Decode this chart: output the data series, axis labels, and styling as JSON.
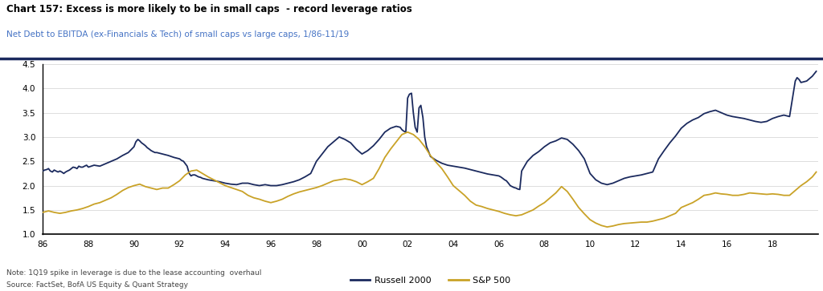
{
  "title": "Chart 157: Excess is more likely to be in small caps  - record leverage ratios",
  "subtitle": "Net Debt to EBITDA (ex-Financials & Tech) of small caps vs large caps, 1/86-11/19",
  "note": "Note: 1Q19 spike in leverage is due to the lease accounting  overhaul",
  "source": "Source: FactSet, BofA US Equity & Quant Strategy",
  "legend": [
    "Russell 2000",
    "S&P 500"
  ],
  "colors": [
    "#1b2a5e",
    "#c9a227"
  ],
  "title_color": "#000000",
  "subtitle_color": "#4472c4",
  "ylim": [
    1.0,
    4.5
  ],
  "yticks": [
    1.0,
    1.5,
    2.0,
    2.5,
    3.0,
    3.5,
    4.0,
    4.5
  ],
  "xlim_start": 1986.0,
  "xlim_end": 2020.0,
  "xtick_labels": [
    "86",
    "88",
    "90",
    "92",
    "94",
    "96",
    "98",
    "00",
    "02",
    "04",
    "06",
    "08",
    "10",
    "12",
    "14",
    "16",
    "18",
    ""
  ],
  "xtick_positions": [
    1986,
    1988,
    1990,
    1992,
    1994,
    1996,
    1998,
    2000,
    2002,
    2004,
    2006,
    2008,
    2010,
    2012,
    2014,
    2016,
    2018,
    2020
  ],
  "russell2000": [
    [
      1986.0,
      2.3
    ],
    [
      1986.08,
      2.32
    ],
    [
      1986.17,
      2.33
    ],
    [
      1986.25,
      2.35
    ],
    [
      1986.33,
      2.3
    ],
    [
      1986.42,
      2.28
    ],
    [
      1986.5,
      2.32
    ],
    [
      1986.58,
      2.3
    ],
    [
      1986.67,
      2.28
    ],
    [
      1986.75,
      2.3
    ],
    [
      1986.83,
      2.28
    ],
    [
      1986.92,
      2.25
    ],
    [
      1987.0,
      2.28
    ],
    [
      1987.08,
      2.3
    ],
    [
      1987.17,
      2.32
    ],
    [
      1987.25,
      2.35
    ],
    [
      1987.33,
      2.38
    ],
    [
      1987.42,
      2.37
    ],
    [
      1987.5,
      2.35
    ],
    [
      1987.58,
      2.4
    ],
    [
      1987.67,
      2.38
    ],
    [
      1987.75,
      2.38
    ],
    [
      1987.83,
      2.4
    ],
    [
      1987.92,
      2.42
    ],
    [
      1988.0,
      2.38
    ],
    [
      1988.25,
      2.42
    ],
    [
      1988.5,
      2.4
    ],
    [
      1988.75,
      2.45
    ],
    [
      1989.0,
      2.5
    ],
    [
      1989.25,
      2.55
    ],
    [
      1989.5,
      2.62
    ],
    [
      1989.75,
      2.68
    ],
    [
      1990.0,
      2.8
    ],
    [
      1990.08,
      2.9
    ],
    [
      1990.17,
      2.95
    ],
    [
      1990.25,
      2.92
    ],
    [
      1990.33,
      2.88
    ],
    [
      1990.42,
      2.85
    ],
    [
      1990.5,
      2.82
    ],
    [
      1990.58,
      2.78
    ],
    [
      1990.67,
      2.75
    ],
    [
      1990.75,
      2.72
    ],
    [
      1990.83,
      2.7
    ],
    [
      1990.92,
      2.68
    ],
    [
      1991.0,
      2.68
    ],
    [
      1991.25,
      2.65
    ],
    [
      1991.5,
      2.62
    ],
    [
      1991.75,
      2.58
    ],
    [
      1992.0,
      2.55
    ],
    [
      1992.08,
      2.52
    ],
    [
      1992.17,
      2.5
    ],
    [
      1992.25,
      2.45
    ],
    [
      1992.33,
      2.4
    ],
    [
      1992.42,
      2.25
    ],
    [
      1992.5,
      2.2
    ],
    [
      1992.58,
      2.22
    ],
    [
      1992.67,
      2.22
    ],
    [
      1992.75,
      2.2
    ],
    [
      1992.83,
      2.18
    ],
    [
      1992.92,
      2.17
    ],
    [
      1993.0,
      2.15
    ],
    [
      1993.25,
      2.12
    ],
    [
      1993.5,
      2.1
    ],
    [
      1993.75,
      2.08
    ],
    [
      1994.0,
      2.05
    ],
    [
      1994.25,
      2.03
    ],
    [
      1994.5,
      2.02
    ],
    [
      1994.75,
      2.05
    ],
    [
      1995.0,
      2.05
    ],
    [
      1995.25,
      2.02
    ],
    [
      1995.5,
      2.0
    ],
    [
      1995.75,
      2.02
    ],
    [
      1996.0,
      2.0
    ],
    [
      1996.25,
      2.0
    ],
    [
      1996.5,
      2.02
    ],
    [
      1996.75,
      2.05
    ],
    [
      1997.0,
      2.08
    ],
    [
      1997.25,
      2.12
    ],
    [
      1997.5,
      2.18
    ],
    [
      1997.75,
      2.25
    ],
    [
      1998.0,
      2.5
    ],
    [
      1998.25,
      2.65
    ],
    [
      1998.5,
      2.8
    ],
    [
      1998.75,
      2.9
    ],
    [
      1999.0,
      3.0
    ],
    [
      1999.25,
      2.95
    ],
    [
      1999.5,
      2.88
    ],
    [
      1999.75,
      2.75
    ],
    [
      2000.0,
      2.65
    ],
    [
      2000.25,
      2.72
    ],
    [
      2000.5,
      2.82
    ],
    [
      2000.75,
      2.95
    ],
    [
      2001.0,
      3.1
    ],
    [
      2001.25,
      3.18
    ],
    [
      2001.5,
      3.22
    ],
    [
      2001.67,
      3.2
    ],
    [
      2001.75,
      3.15
    ],
    [
      2001.83,
      3.12
    ],
    [
      2001.92,
      3.1
    ],
    [
      2002.0,
      3.8
    ],
    [
      2002.08,
      3.88
    ],
    [
      2002.17,
      3.9
    ],
    [
      2002.25,
      3.5
    ],
    [
      2002.33,
      3.2
    ],
    [
      2002.42,
      3.1
    ],
    [
      2002.5,
      3.6
    ],
    [
      2002.58,
      3.65
    ],
    [
      2002.67,
      3.4
    ],
    [
      2002.75,
      3.0
    ],
    [
      2002.83,
      2.8
    ],
    [
      2002.92,
      2.7
    ],
    [
      2003.0,
      2.6
    ],
    [
      2003.25,
      2.52
    ],
    [
      2003.5,
      2.46
    ],
    [
      2003.75,
      2.42
    ],
    [
      2004.0,
      2.4
    ],
    [
      2004.25,
      2.38
    ],
    [
      2004.5,
      2.36
    ],
    [
      2004.75,
      2.33
    ],
    [
      2005.0,
      2.3
    ],
    [
      2005.25,
      2.27
    ],
    [
      2005.5,
      2.24
    ],
    [
      2005.75,
      2.22
    ],
    [
      2006.0,
      2.2
    ],
    [
      2006.08,
      2.18
    ],
    [
      2006.17,
      2.15
    ],
    [
      2006.25,
      2.12
    ],
    [
      2006.33,
      2.1
    ],
    [
      2006.42,
      2.05
    ],
    [
      2006.5,
      2.0
    ],
    [
      2006.58,
      1.98
    ],
    [
      2006.67,
      1.96
    ],
    [
      2006.75,
      1.95
    ],
    [
      2006.83,
      1.93
    ],
    [
      2006.92,
      1.92
    ],
    [
      2007.0,
      2.3
    ],
    [
      2007.25,
      2.5
    ],
    [
      2007.5,
      2.62
    ],
    [
      2007.75,
      2.7
    ],
    [
      2008.0,
      2.8
    ],
    [
      2008.25,
      2.88
    ],
    [
      2008.5,
      2.92
    ],
    [
      2008.75,
      2.98
    ],
    [
      2009.0,
      2.95
    ],
    [
      2009.25,
      2.85
    ],
    [
      2009.5,
      2.72
    ],
    [
      2009.75,
      2.55
    ],
    [
      2010.0,
      2.25
    ],
    [
      2010.25,
      2.12
    ],
    [
      2010.5,
      2.05
    ],
    [
      2010.75,
      2.02
    ],
    [
      2011.0,
      2.05
    ],
    [
      2011.25,
      2.1
    ],
    [
      2011.5,
      2.15
    ],
    [
      2011.75,
      2.18
    ],
    [
      2012.0,
      2.2
    ],
    [
      2012.25,
      2.22
    ],
    [
      2012.5,
      2.25
    ],
    [
      2012.75,
      2.28
    ],
    [
      2013.0,
      2.55
    ],
    [
      2013.25,
      2.72
    ],
    [
      2013.5,
      2.88
    ],
    [
      2013.75,
      3.02
    ],
    [
      2014.0,
      3.18
    ],
    [
      2014.25,
      3.28
    ],
    [
      2014.5,
      3.35
    ],
    [
      2014.75,
      3.4
    ],
    [
      2015.0,
      3.48
    ],
    [
      2015.25,
      3.52
    ],
    [
      2015.5,
      3.55
    ],
    [
      2015.75,
      3.5
    ],
    [
      2016.0,
      3.45
    ],
    [
      2016.25,
      3.42
    ],
    [
      2016.5,
      3.4
    ],
    [
      2016.75,
      3.38
    ],
    [
      2017.0,
      3.35
    ],
    [
      2017.25,
      3.32
    ],
    [
      2017.5,
      3.3
    ],
    [
      2017.75,
      3.32
    ],
    [
      2018.0,
      3.38
    ],
    [
      2018.25,
      3.42
    ],
    [
      2018.5,
      3.45
    ],
    [
      2018.75,
      3.42
    ],
    [
      2019.0,
      4.15
    ],
    [
      2019.08,
      4.22
    ],
    [
      2019.17,
      4.18
    ],
    [
      2019.25,
      4.12
    ],
    [
      2019.5,
      4.15
    ],
    [
      2019.75,
      4.25
    ],
    [
      2019.92,
      4.35
    ]
  ],
  "sp500": [
    [
      1986.0,
      1.45
    ],
    [
      1986.25,
      1.48
    ],
    [
      1986.5,
      1.45
    ],
    [
      1986.75,
      1.43
    ],
    [
      1987.0,
      1.45
    ],
    [
      1987.25,
      1.48
    ],
    [
      1987.5,
      1.5
    ],
    [
      1987.75,
      1.53
    ],
    [
      1988.0,
      1.57
    ],
    [
      1988.25,
      1.62
    ],
    [
      1988.5,
      1.65
    ],
    [
      1988.75,
      1.7
    ],
    [
      1989.0,
      1.75
    ],
    [
      1989.25,
      1.82
    ],
    [
      1989.5,
      1.9
    ],
    [
      1989.75,
      1.96
    ],
    [
      1990.0,
      2.0
    ],
    [
      1990.25,
      2.03
    ],
    [
      1990.5,
      1.98
    ],
    [
      1990.75,
      1.95
    ],
    [
      1991.0,
      1.92
    ],
    [
      1991.25,
      1.95
    ],
    [
      1991.5,
      1.95
    ],
    [
      1991.75,
      2.02
    ],
    [
      1992.0,
      2.1
    ],
    [
      1992.25,
      2.22
    ],
    [
      1992.5,
      2.3
    ],
    [
      1992.75,
      2.32
    ],
    [
      1993.0,
      2.25
    ],
    [
      1993.25,
      2.18
    ],
    [
      1993.5,
      2.12
    ],
    [
      1993.75,
      2.06
    ],
    [
      1994.0,
      2.0
    ],
    [
      1994.25,
      1.96
    ],
    [
      1994.5,
      1.92
    ],
    [
      1994.75,
      1.88
    ],
    [
      1995.0,
      1.8
    ],
    [
      1995.25,
      1.75
    ],
    [
      1995.5,
      1.72
    ],
    [
      1995.75,
      1.68
    ],
    [
      1996.0,
      1.65
    ],
    [
      1996.25,
      1.68
    ],
    [
      1996.5,
      1.72
    ],
    [
      1996.75,
      1.78
    ],
    [
      1997.0,
      1.83
    ],
    [
      1997.25,
      1.87
    ],
    [
      1997.5,
      1.9
    ],
    [
      1997.75,
      1.93
    ],
    [
      1998.0,
      1.96
    ],
    [
      1998.25,
      2.0
    ],
    [
      1998.5,
      2.05
    ],
    [
      1998.75,
      2.1
    ],
    [
      1999.0,
      2.12
    ],
    [
      1999.25,
      2.14
    ],
    [
      1999.5,
      2.12
    ],
    [
      1999.75,
      2.08
    ],
    [
      2000.0,
      2.02
    ],
    [
      2000.25,
      2.08
    ],
    [
      2000.5,
      2.15
    ],
    [
      2000.75,
      2.35
    ],
    [
      2001.0,
      2.58
    ],
    [
      2001.25,
      2.75
    ],
    [
      2001.5,
      2.9
    ],
    [
      2001.75,
      3.05
    ],
    [
      2002.0,
      3.1
    ],
    [
      2002.25,
      3.05
    ],
    [
      2002.5,
      2.95
    ],
    [
      2002.75,
      2.8
    ],
    [
      2003.0,
      2.62
    ],
    [
      2003.25,
      2.48
    ],
    [
      2003.5,
      2.35
    ],
    [
      2003.75,
      2.18
    ],
    [
      2004.0,
      2.0
    ],
    [
      2004.25,
      1.9
    ],
    [
      2004.5,
      1.8
    ],
    [
      2004.75,
      1.68
    ],
    [
      2005.0,
      1.6
    ],
    [
      2005.25,
      1.57
    ],
    [
      2005.5,
      1.53
    ],
    [
      2005.75,
      1.5
    ],
    [
      2006.0,
      1.47
    ],
    [
      2006.25,
      1.43
    ],
    [
      2006.5,
      1.4
    ],
    [
      2006.75,
      1.38
    ],
    [
      2007.0,
      1.4
    ],
    [
      2007.25,
      1.45
    ],
    [
      2007.5,
      1.5
    ],
    [
      2007.75,
      1.58
    ],
    [
      2008.0,
      1.65
    ],
    [
      2008.25,
      1.75
    ],
    [
      2008.5,
      1.85
    ],
    [
      2008.75,
      1.98
    ],
    [
      2009.0,
      1.88
    ],
    [
      2009.25,
      1.72
    ],
    [
      2009.5,
      1.55
    ],
    [
      2009.75,
      1.42
    ],
    [
      2010.0,
      1.3
    ],
    [
      2010.25,
      1.23
    ],
    [
      2010.5,
      1.18
    ],
    [
      2010.75,
      1.15
    ],
    [
      2011.0,
      1.17
    ],
    [
      2011.25,
      1.2
    ],
    [
      2011.5,
      1.22
    ],
    [
      2011.75,
      1.23
    ],
    [
      2012.0,
      1.24
    ],
    [
      2012.25,
      1.25
    ],
    [
      2012.5,
      1.25
    ],
    [
      2012.75,
      1.27
    ],
    [
      2013.0,
      1.3
    ],
    [
      2013.25,
      1.33
    ],
    [
      2013.5,
      1.38
    ],
    [
      2013.75,
      1.43
    ],
    [
      2014.0,
      1.55
    ],
    [
      2014.25,
      1.6
    ],
    [
      2014.5,
      1.65
    ],
    [
      2014.75,
      1.72
    ],
    [
      2015.0,
      1.8
    ],
    [
      2015.25,
      1.82
    ],
    [
      2015.5,
      1.85
    ],
    [
      2015.75,
      1.83
    ],
    [
      2016.0,
      1.82
    ],
    [
      2016.25,
      1.8
    ],
    [
      2016.5,
      1.8
    ],
    [
      2016.75,
      1.82
    ],
    [
      2017.0,
      1.85
    ],
    [
      2017.25,
      1.84
    ],
    [
      2017.5,
      1.83
    ],
    [
      2017.75,
      1.82
    ],
    [
      2018.0,
      1.83
    ],
    [
      2018.25,
      1.82
    ],
    [
      2018.5,
      1.8
    ],
    [
      2018.75,
      1.8
    ],
    [
      2019.0,
      1.9
    ],
    [
      2019.25,
      2.0
    ],
    [
      2019.5,
      2.08
    ],
    [
      2019.75,
      2.18
    ],
    [
      2019.92,
      2.28
    ]
  ],
  "line_width": 1.3,
  "background_color": "#ffffff",
  "dark_blue": "#1b2a5e",
  "mid_blue": "#4472c4"
}
